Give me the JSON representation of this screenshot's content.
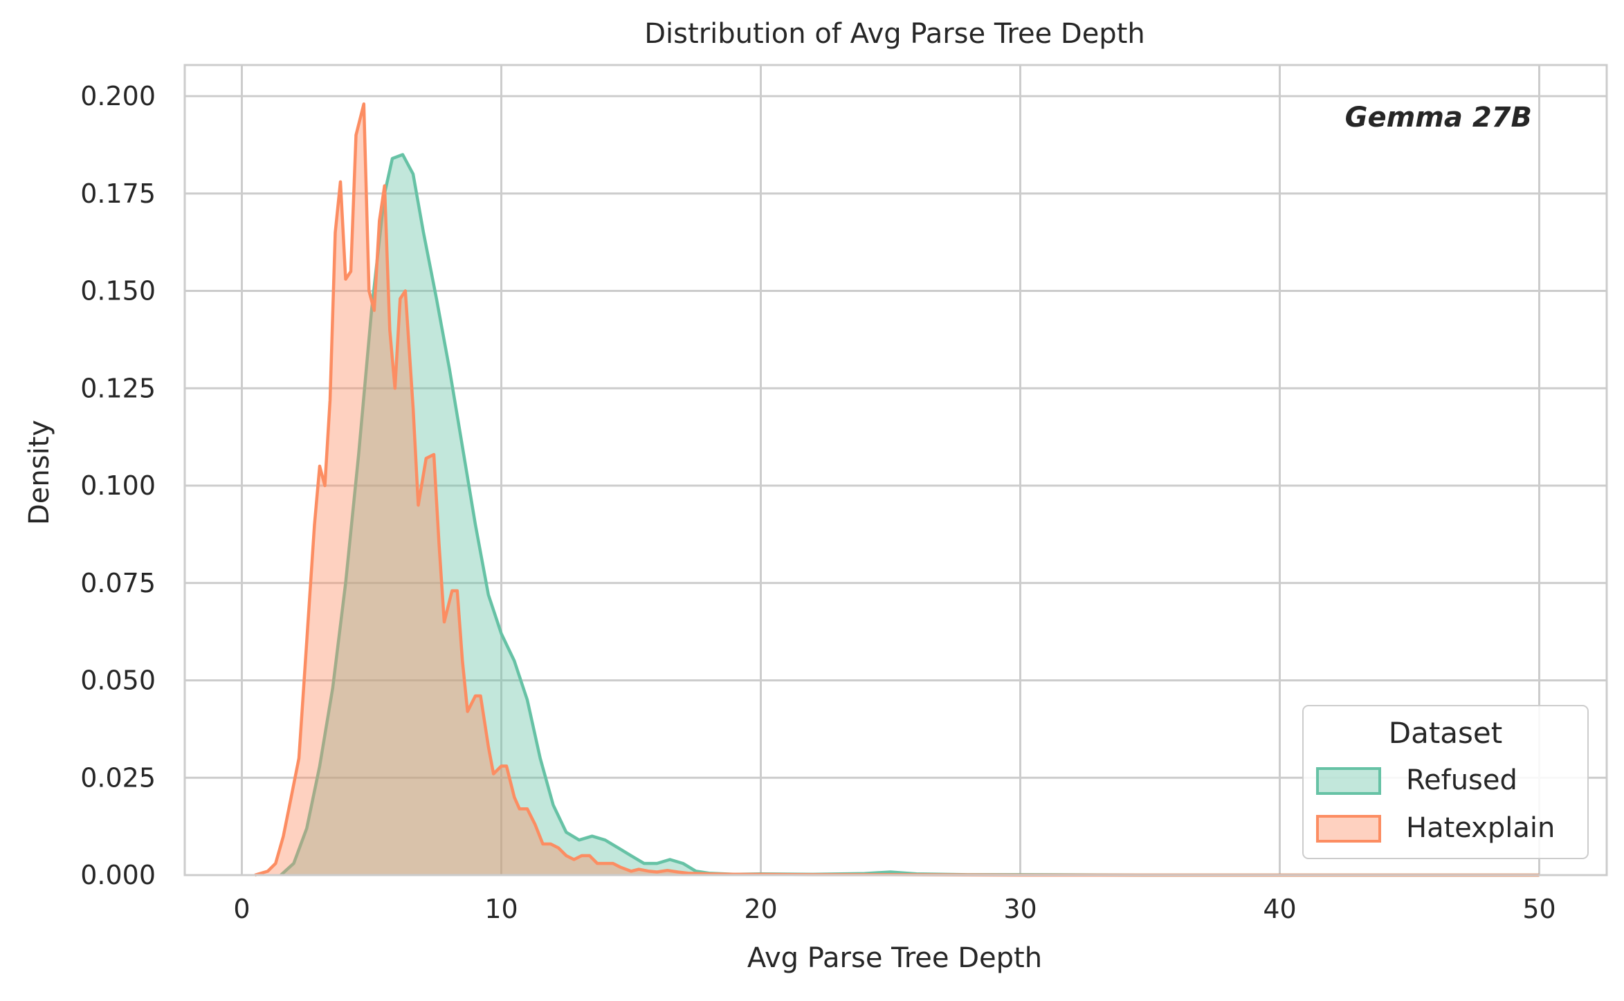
{
  "chart_data": {
    "type": "area",
    "title": "Distribution of Avg Parse Tree Depth",
    "xlabel": "Avg Parse Tree Depth",
    "ylabel": "Density",
    "annotation": "Gemma 27B",
    "xlim": [
      -2.2,
      52.6
    ],
    "ylim": [
      0,
      0.208
    ],
    "xticks": [
      0,
      10,
      20,
      30,
      40,
      50
    ],
    "yticks": [
      0.0,
      0.025,
      0.05,
      0.075,
      0.1,
      0.125,
      0.15,
      0.175,
      0.2
    ],
    "ytick_labels": [
      "0.000",
      "0.025",
      "0.050",
      "0.075",
      "0.100",
      "0.125",
      "0.150",
      "0.175",
      "0.200"
    ],
    "grid": true,
    "legend": {
      "title": "Dataset",
      "position": "lower-right"
    },
    "series": [
      {
        "name": "Refused",
        "color": "#66c2a5",
        "x": [
          1.5,
          2.0,
          2.5,
          3.0,
          3.5,
          4.0,
          4.5,
          5.0,
          5.5,
          5.8,
          6.2,
          6.6,
          7.0,
          7.5,
          8.0,
          8.5,
          9.0,
          9.5,
          10.0,
          10.5,
          11.0,
          11.5,
          12.0,
          12.5,
          13.0,
          13.5,
          14.0,
          14.5,
          15.0,
          15.5,
          16.0,
          16.5,
          17.0,
          17.5,
          18.0,
          19.0,
          20.0,
          22.0,
          24.0,
          25.0,
          26.0,
          28.0,
          30.0,
          35.0,
          40.0,
          45.0,
          50.0
        ],
        "values": [
          0.0,
          0.003,
          0.012,
          0.028,
          0.048,
          0.075,
          0.108,
          0.145,
          0.175,
          0.184,
          0.185,
          0.18,
          0.165,
          0.148,
          0.13,
          0.11,
          0.09,
          0.072,
          0.062,
          0.055,
          0.045,
          0.03,
          0.018,
          0.011,
          0.009,
          0.01,
          0.009,
          0.007,
          0.005,
          0.003,
          0.003,
          0.004,
          0.003,
          0.001,
          0.0005,
          0.0002,
          0.0003,
          0.0002,
          0.0004,
          0.0008,
          0.0003,
          0.0001,
          0.0001,
          0.0,
          0.0,
          0.0,
          0.0
        ]
      },
      {
        "name": "Hatexplain",
        "color": "#fc8d62",
        "x": [
          0.5,
          1.0,
          1.3,
          1.6,
          1.9,
          2.2,
          2.5,
          2.8,
          3.0,
          3.2,
          3.4,
          3.6,
          3.8,
          4.0,
          4.2,
          4.4,
          4.7,
          4.9,
          5.1,
          5.3,
          5.5,
          5.7,
          5.9,
          6.1,
          6.3,
          6.6,
          6.8,
          7.1,
          7.4,
          7.6,
          7.8,
          8.1,
          8.3,
          8.5,
          8.7,
          9.0,
          9.2,
          9.5,
          9.7,
          10.0,
          10.2,
          10.5,
          10.7,
          11.0,
          11.3,
          11.6,
          11.9,
          12.2,
          12.5,
          12.8,
          13.1,
          13.4,
          13.7,
          14.0,
          14.3,
          14.6,
          15.0,
          15.3,
          15.7,
          16.0,
          16.4,
          16.8,
          17.2,
          17.6,
          18.0,
          19.0,
          20.0,
          22.0,
          25.0,
          30.0,
          35.0,
          40.0,
          45.0,
          50.0
        ],
        "values": [
          0.0,
          0.001,
          0.003,
          0.01,
          0.02,
          0.03,
          0.06,
          0.09,
          0.105,
          0.1,
          0.122,
          0.165,
          0.178,
          0.153,
          0.155,
          0.19,
          0.198,
          0.15,
          0.145,
          0.168,
          0.177,
          0.14,
          0.125,
          0.148,
          0.15,
          0.12,
          0.095,
          0.107,
          0.108,
          0.085,
          0.065,
          0.073,
          0.073,
          0.055,
          0.042,
          0.046,
          0.046,
          0.033,
          0.026,
          0.028,
          0.028,
          0.02,
          0.017,
          0.017,
          0.013,
          0.008,
          0.008,
          0.007,
          0.005,
          0.004,
          0.005,
          0.005,
          0.003,
          0.003,
          0.003,
          0.002,
          0.001,
          0.0015,
          0.001,
          0.0008,
          0.0012,
          0.0008,
          0.0005,
          0.0004,
          0.0003,
          0.0002,
          0.0002,
          0.0001,
          0.0001,
          0.0,
          0.0,
          0.0,
          0.0,
          0.0
        ]
      }
    ]
  }
}
